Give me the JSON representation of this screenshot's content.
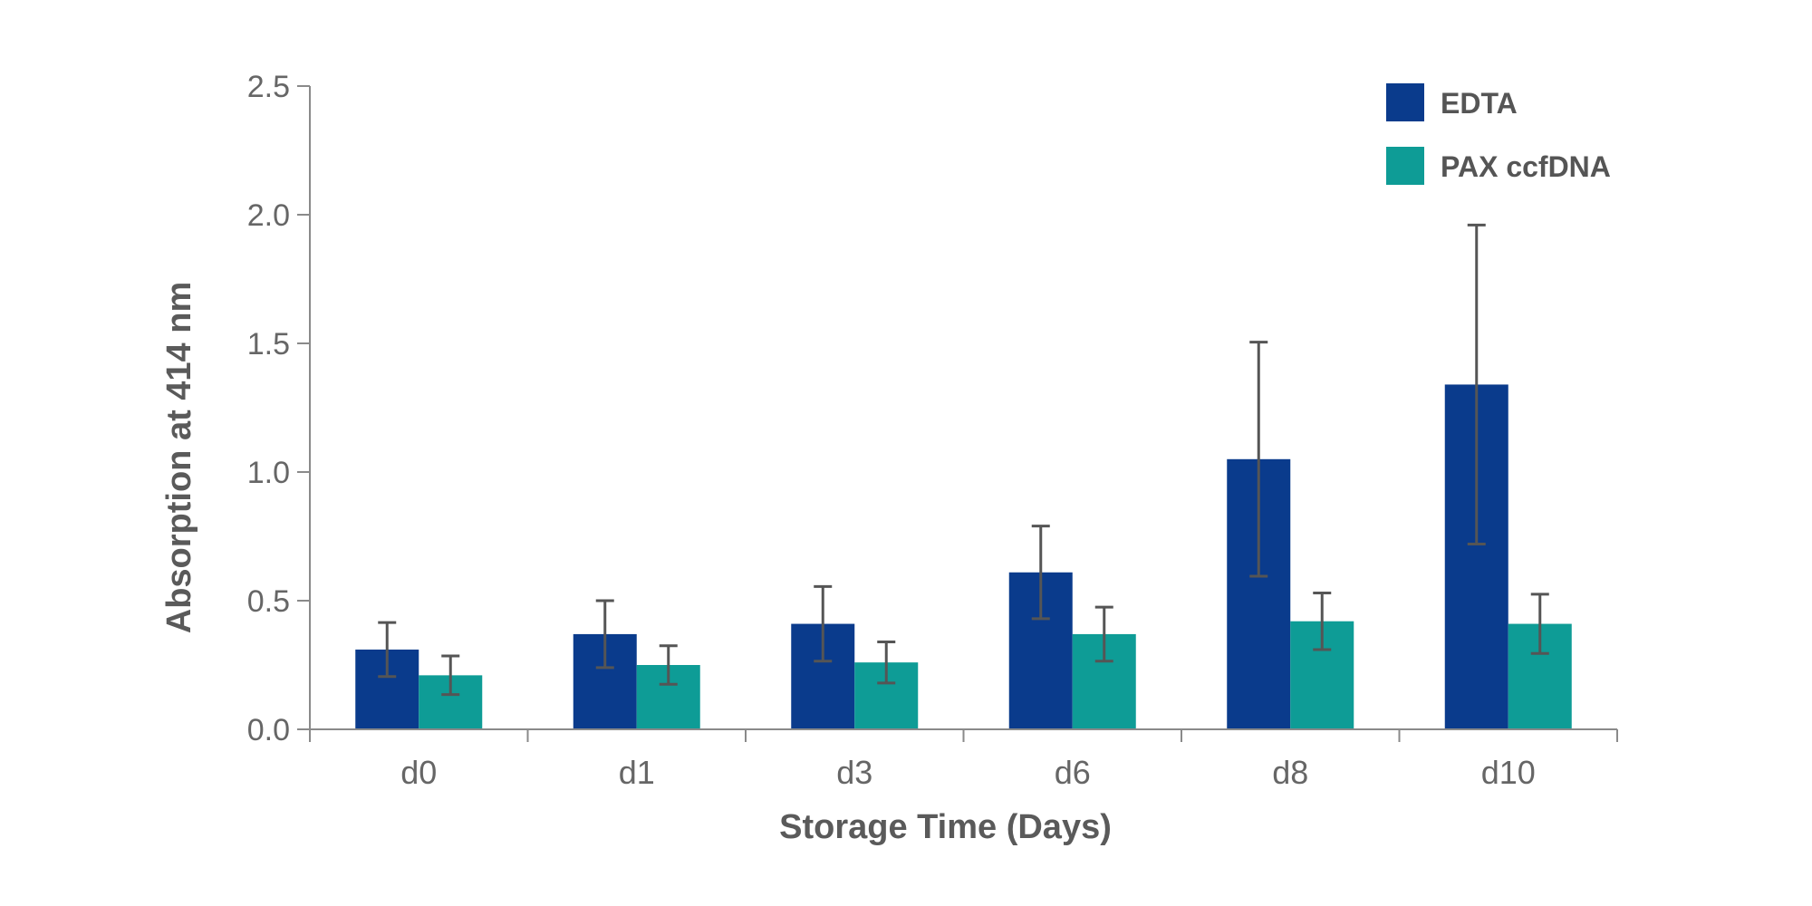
{
  "chart_data": {
    "type": "bar",
    "title": "",
    "xlabel": "Storage Time (Days)",
    "ylabel": "Absorption at 414 nm",
    "categories": [
      "d0",
      "d1",
      "d3",
      "d6",
      "d8",
      "d10"
    ],
    "ylim": [
      0,
      2.5
    ],
    "yticks": [
      "0.0",
      "0.5",
      "1.0",
      "1.5",
      "2.0",
      "2.5"
    ],
    "ytick_values": [
      0,
      0.5,
      1.0,
      1.5,
      2.0,
      2.5
    ],
    "grid": false,
    "legend_position": "top-right",
    "series": [
      {
        "name": "EDTA",
        "color": "#0a3b8c",
        "values": [
          0.31,
          0.37,
          0.41,
          0.61,
          1.05,
          1.34
        ],
        "error": [
          0.105,
          0.13,
          0.145,
          0.18,
          0.455,
          0.62
        ]
      },
      {
        "name": "PAX ccfDNA",
        "color": "#0e9c96",
        "values": [
          0.21,
          0.25,
          0.26,
          0.37,
          0.42,
          0.41
        ],
        "error": [
          0.075,
          0.075,
          0.08,
          0.105,
          0.11,
          0.115
        ]
      }
    ]
  }
}
